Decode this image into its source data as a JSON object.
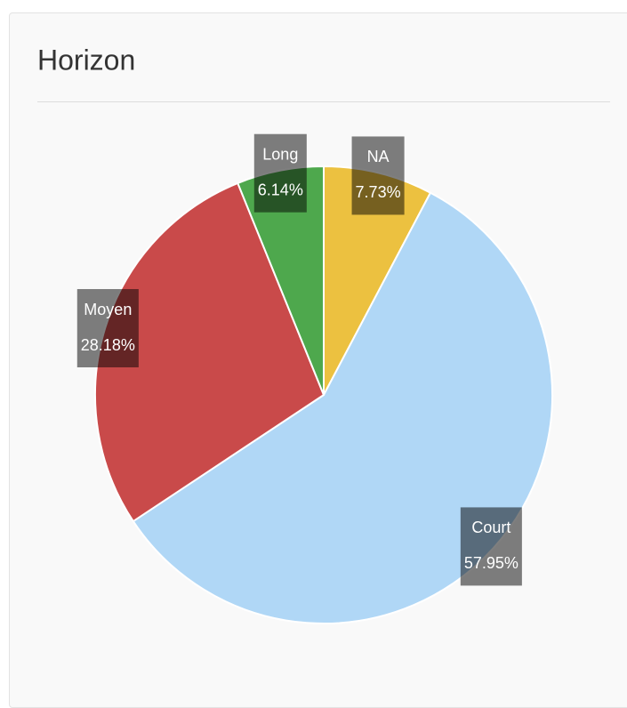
{
  "chart_data": {
    "type": "pie",
    "title": "Horizon",
    "categories": [
      "NA",
      "Court",
      "Moyen",
      "Long"
    ],
    "values": [
      7.73,
      57.95,
      28.18,
      6.14
    ],
    "value_labels": [
      "7.73%",
      "57.95%",
      "28.18%",
      "6.14%"
    ],
    "colors": [
      "#ecc140",
      "#b0d7f6",
      "#c94a4a",
      "#4ea84d"
    ]
  }
}
